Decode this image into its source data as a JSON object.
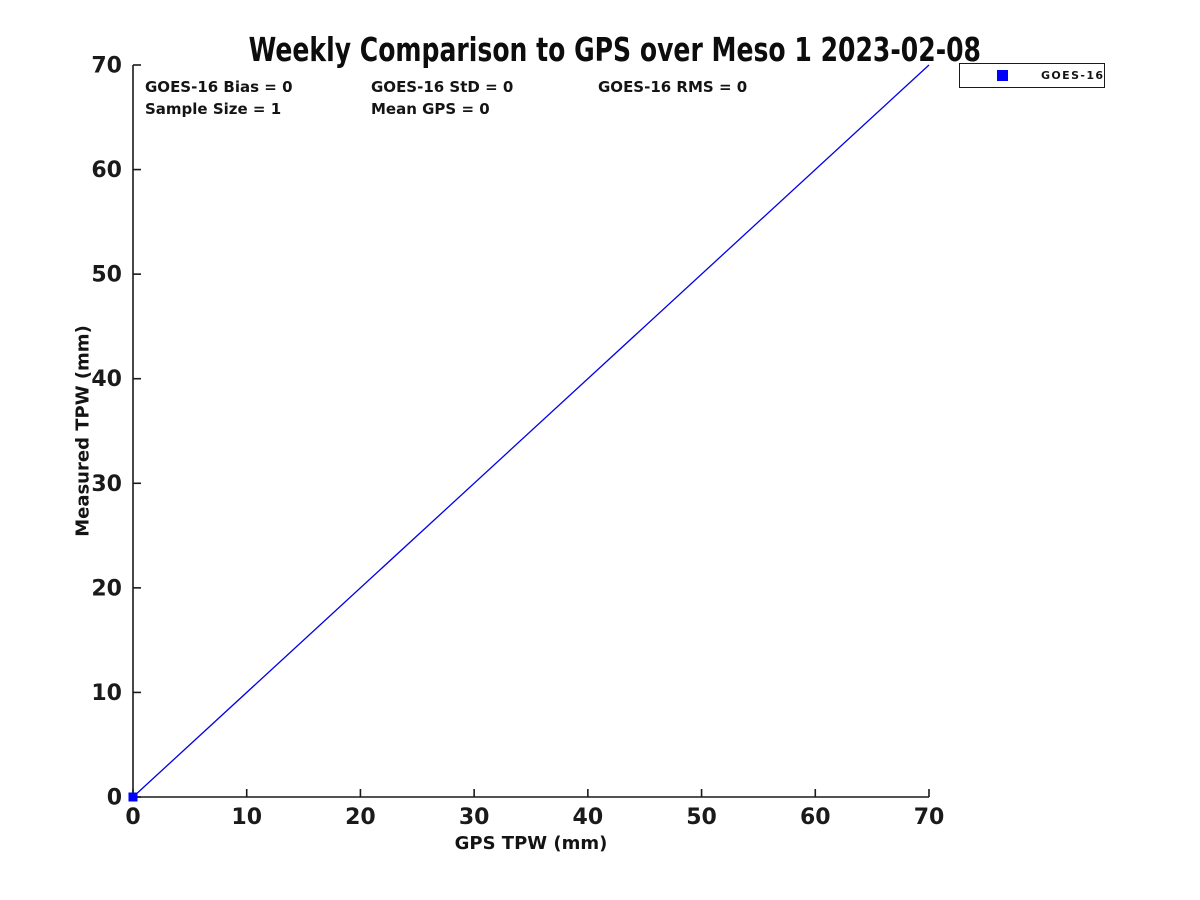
{
  "chart_data": {
    "type": "scatter",
    "title": "Weekly Comparison to GPS over Meso 1 2023-02-08",
    "xlabel": "GPS TPW (mm)",
    "ylabel": "Measured TPW (mm)",
    "xlim": [
      0,
      70
    ],
    "ylim": [
      0,
      70
    ],
    "xticks": [
      0,
      10,
      20,
      30,
      40,
      50,
      60,
      70
    ],
    "yticks": [
      0,
      10,
      20,
      30,
      40,
      50,
      60,
      70
    ],
    "grid": false,
    "axis_color": "#1a1a1a",
    "series": [
      {
        "name": "1:1 reference line",
        "type": "line",
        "color": "#0000e6",
        "x": [
          0,
          70
        ],
        "y": [
          0,
          70
        ]
      },
      {
        "name": "GOES-16",
        "type": "scatter",
        "marker": "square",
        "color": "#0000ff",
        "x": [
          0
        ],
        "y": [
          0
        ]
      }
    ],
    "legend": {
      "labels": [
        "GOES-16"
      ],
      "position": "upper-right-outside",
      "marker": "square",
      "marker_color": "#0000ff"
    },
    "annotations": [
      {
        "text": "GOES-16 Bias = 0"
      },
      {
        "text": "GOES-16 StD = 0"
      },
      {
        "text": "GOES-16 RMS = 0"
      },
      {
        "text": "Sample Size = 1"
      },
      {
        "text": "Mean GPS = 0"
      }
    ],
    "stats": {
      "goes16_bias": 0,
      "goes16_std": 0,
      "goes16_rms": 0,
      "sample_size": 1,
      "mean_gps": 0
    }
  }
}
